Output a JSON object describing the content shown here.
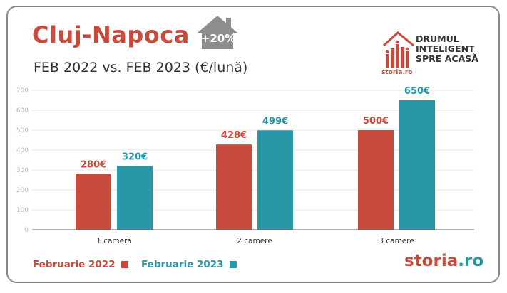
{
  "header": {
    "title": "Cluj-Napoca",
    "badge": "+20%",
    "subtitle": "FEB 2022 vs. FEB 2023 (€/lună)"
  },
  "brand": {
    "line1": "DRUMUL",
    "line2": "INTELIGENT",
    "line3": "SPRE ACASĂ",
    "small_logo": "storia.ro",
    "footer_main": "storia",
    "footer_tld": ".ro"
  },
  "colors": {
    "red": "#c84a3c",
    "teal": "#2a97a6",
    "house_gray": "#8d8d8d"
  },
  "chart_data": {
    "type": "bar",
    "categories": [
      "1 cameră",
      "2 camere",
      "3 camere"
    ],
    "series": [
      {
        "name": "Februarie 2022",
        "values": [
          280,
          428,
          500
        ],
        "labels": [
          "280€",
          "428€",
          "500€"
        ]
      },
      {
        "name": "Februarie 2023",
        "values": [
          320,
          499,
          650
        ],
        "labels": [
          "320€",
          "499€",
          "650€"
        ]
      }
    ],
    "yticks": [
      0,
      100,
      200,
      300,
      400,
      500,
      600,
      700
    ],
    "ylim": [
      0,
      700
    ],
    "grid": true,
    "legend": "bottom-left"
  }
}
